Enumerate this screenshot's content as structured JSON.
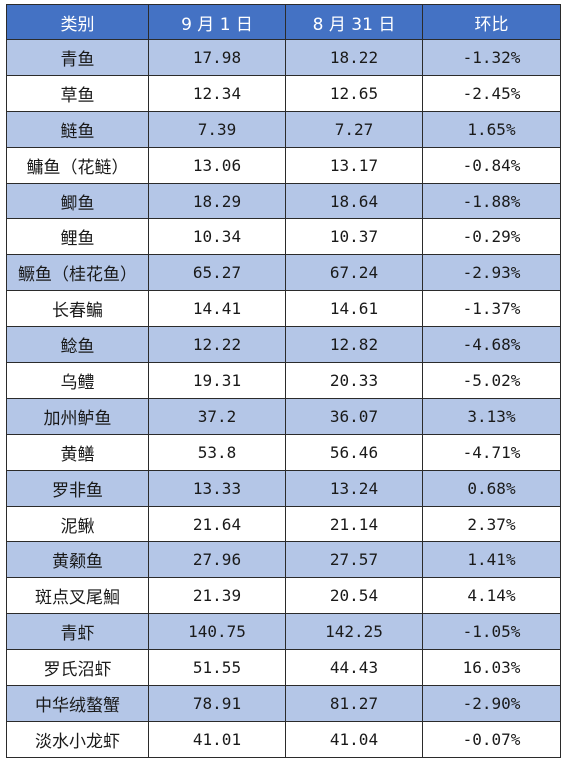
{
  "table": {
    "headers": [
      "类别",
      "9 月 1 日",
      "8 月 31 日",
      "环比"
    ],
    "rows": [
      [
        "青鱼",
        "17.98",
        "18.22",
        "-1.32%"
      ],
      [
        "草鱼",
        "12.34",
        "12.65",
        "-2.45%"
      ],
      [
        "鲢鱼",
        "7.39",
        "7.27",
        "1.65%"
      ],
      [
        "鳙鱼（花鲢）",
        "13.06",
        "13.17",
        "-0.84%"
      ],
      [
        "鲫鱼",
        "18.29",
        "18.64",
        "-1.88%"
      ],
      [
        "鲤鱼",
        "10.34",
        "10.37",
        "-0.29%"
      ],
      [
        "鳜鱼（桂花鱼）",
        "65.27",
        "67.24",
        "-2.93%"
      ],
      [
        "长春鳊",
        "14.41",
        "14.61",
        "-1.37%"
      ],
      [
        "鲶鱼",
        "12.22",
        "12.82",
        "-4.68%"
      ],
      [
        "乌鳢",
        "19.31",
        "20.33",
        "-5.02%"
      ],
      [
        "加州鲈鱼",
        "37.2",
        "36.07",
        "3.13%"
      ],
      [
        "黄鳝",
        "53.8",
        "56.46",
        "-4.71%"
      ],
      [
        "罗非鱼",
        "13.33",
        "13.24",
        "0.68%"
      ],
      [
        "泥鳅",
        "21.64",
        "21.14",
        "2.37%"
      ],
      [
        "黄颡鱼",
        "27.96",
        "27.57",
        "1.41%"
      ],
      [
        "斑点叉尾鮰",
        "21.39",
        "20.54",
        "4.14%"
      ],
      [
        "青虾",
        "140.75",
        "142.25",
        "-1.05%"
      ],
      [
        "罗氏沼虾",
        "51.55",
        "44.43",
        "16.03%"
      ],
      [
        "中华绒螯蟹",
        "78.91",
        "81.27",
        "-2.90%"
      ],
      [
        "淡水小龙虾",
        "41.01",
        "41.04",
        "-0.07%"
      ]
    ]
  },
  "colors": {
    "header_bg": "#4472c4",
    "header_text": "#ffffff",
    "band_bg": "#b4c6e7",
    "plain_bg": "#ffffff"
  }
}
